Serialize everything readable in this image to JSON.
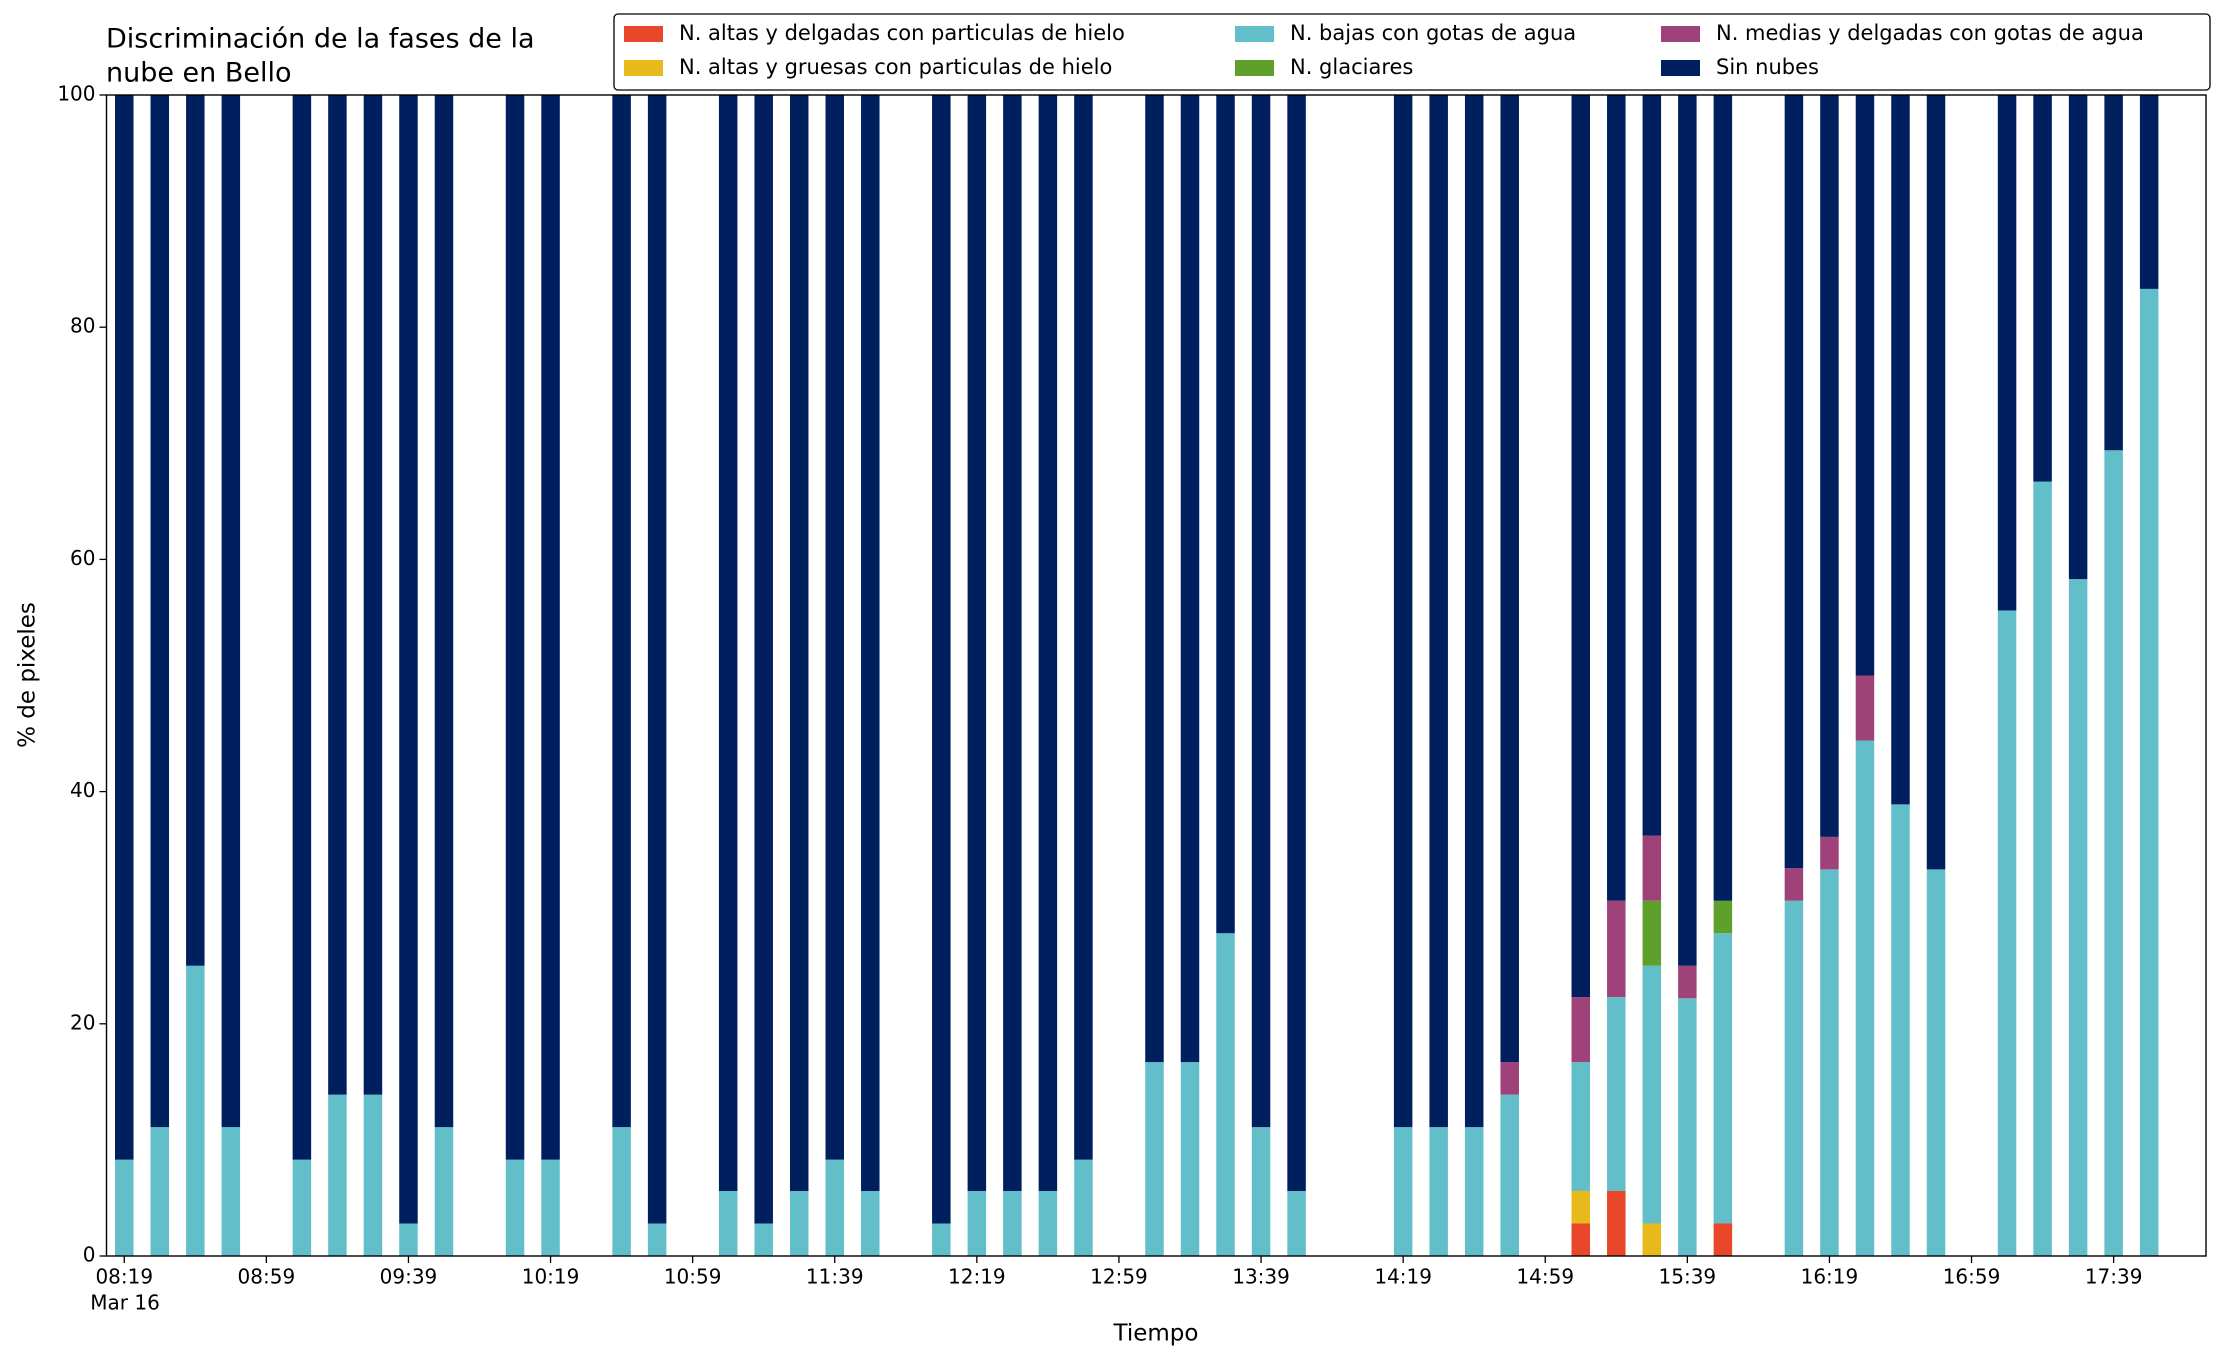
{
  "chart_data": {
    "type": "stacked_bar",
    "title": [
      "Discriminación de la fases de la",
      "nube en Bello"
    ],
    "x_label": "Tiempo",
    "y_label": "% de pixeles",
    "x_date_label": "Mar 16",
    "x": [
      "08:19",
      "08:29",
      "08:39",
      "08:49",
      "09:09",
      "09:19",
      "09:29",
      "09:39",
      "09:49",
      "10:09",
      "10:19",
      "10:39",
      "10:49",
      "11:09",
      "11:19",
      "11:29",
      "11:39",
      "11:49",
      "12:09",
      "12:19",
      "12:29",
      "12:39",
      "12:49",
      "13:09",
      "13:19",
      "13:29",
      "13:39",
      "13:49",
      "14:19",
      "14:29",
      "14:39",
      "14:49",
      "15:09",
      "15:19",
      "15:29",
      "15:39",
      "15:49",
      "16:09",
      "16:19",
      "16:29",
      "16:39",
      "16:49",
      "17:09",
      "17:19",
      "17:29",
      "17:39",
      "17:49"
    ],
    "xlim": [
      "08:14",
      "18:05"
    ],
    "xticks": [
      "08:19",
      "08:59",
      "09:39",
      "10:19",
      "10:59",
      "11:39",
      "12:19",
      "12:59",
      "13:39",
      "14:19",
      "14:59",
      "15:39",
      "16:19",
      "16:59",
      "17:39"
    ],
    "ylim": [
      0,
      100
    ],
    "yticks": [
      0,
      20,
      40,
      60,
      80,
      100
    ],
    "grid": false,
    "legend": "upper right",
    "legend_columns": 3,
    "series": [
      {
        "name": "N. altas y delgadas con particulas de hielo",
        "color": "#e8472a",
        "values": [
          0,
          0,
          0,
          0,
          0,
          0,
          0,
          0,
          0,
          0,
          0,
          0,
          0,
          0,
          0,
          0,
          0,
          0,
          0,
          0,
          0,
          0,
          0,
          0,
          0,
          0,
          0,
          0,
          0,
          0,
          0,
          0,
          2.8,
          5.6,
          0,
          0,
          2.8,
          0,
          0,
          0,
          0,
          0,
          0,
          0,
          0,
          0,
          0
        ]
      },
      {
        "name": "N. altas y gruesas con particulas de hielo",
        "color": "#e8b91a",
        "values": [
          0,
          0,
          0,
          0,
          0,
          0,
          0,
          0,
          0,
          0,
          0,
          0,
          0,
          0,
          0,
          0,
          0,
          0,
          0,
          0,
          0,
          0,
          0,
          0,
          0,
          0,
          0,
          0,
          0,
          0,
          0,
          0,
          2.8,
          0,
          2.8,
          0,
          0,
          0,
          0,
          0,
          0,
          0,
          0,
          0,
          0,
          0,
          0
        ]
      },
      {
        "name": "N. bajas con gotas de agua",
        "color": "#62bfca",
        "values": [
          8.3,
          11.1,
          25,
          11.1,
          8.3,
          13.9,
          13.9,
          2.8,
          11.1,
          8.3,
          8.3,
          11.1,
          2.8,
          5.6,
          2.8,
          5.6,
          8.3,
          5.6,
          2.8,
          5.6,
          5.6,
          5.6,
          8.3,
          16.7,
          16.7,
          27.8,
          11.1,
          5.6,
          11.1,
          11.1,
          11.1,
          13.9,
          11.1,
          16.7,
          22.2,
          22.2,
          25,
          30.6,
          33.3,
          44.4,
          38.9,
          33.3,
          55.6,
          66.7,
          58.3,
          69.4,
          83.3
        ]
      },
      {
        "name": "N. glaciares",
        "color": "#5ea02b",
        "values": [
          0,
          0,
          0,
          0,
          0,
          0,
          0,
          0,
          0,
          0,
          0,
          0,
          0,
          0,
          0,
          0,
          0,
          0,
          0,
          0,
          0,
          0,
          0,
          0,
          0,
          0,
          0,
          0,
          0,
          0,
          0,
          0,
          0,
          0,
          5.6,
          0,
          2.8,
          0,
          0,
          0,
          0,
          0,
          0,
          0,
          0,
          0,
          0
        ]
      },
      {
        "name": "N. medias y delgadas con gotas de agua",
        "color": "#a0427a",
        "values": [
          0,
          0,
          0,
          0,
          0,
          0,
          0,
          0,
          0,
          0,
          0,
          0,
          0,
          0,
          0,
          0,
          0,
          0,
          0,
          0,
          0,
          0,
          0,
          0,
          0,
          0,
          0,
          0,
          0,
          0,
          0,
          2.8,
          5.6,
          8.3,
          5.6,
          2.8,
          0,
          2.8,
          2.8,
          5.6,
          0,
          0,
          0,
          0,
          0,
          0,
          0
        ]
      },
      {
        "name": "Sin nubes",
        "color": "#001f5f",
        "values": [
          91.7,
          88.9,
          75,
          88.9,
          91.7,
          86.1,
          86.1,
          97.2,
          88.9,
          91.7,
          91.7,
          88.9,
          97.2,
          94.4,
          97.2,
          94.4,
          91.7,
          94.4,
          97.2,
          94.4,
          94.4,
          94.4,
          91.7,
          83.3,
          83.3,
          72.2,
          88.9,
          94.4,
          88.9,
          88.9,
          88.9,
          83.3,
          77.7,
          69.4,
          63.8,
          75,
          69.4,
          66.6,
          63.9,
          50,
          61.1,
          66.7,
          44.4,
          33.3,
          41.7,
          30.6,
          16.7
        ]
      }
    ]
  }
}
